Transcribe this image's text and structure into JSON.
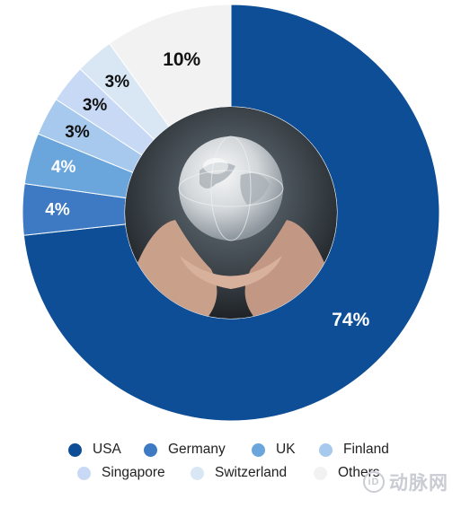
{
  "chart_data": {
    "type": "pie",
    "donut": true,
    "title": "",
    "start_angle_deg": 0,
    "direction": "clockwise",
    "slices": [
      {
        "label": "USA",
        "value": 74,
        "display": "74%",
        "color": "#0e4e96",
        "label_color": "#ffffff"
      },
      {
        "label": "Germany",
        "value": 4,
        "display": "4%",
        "color": "#3d7ac3",
        "label_color": "#ffffff"
      },
      {
        "label": "UK",
        "value": 4,
        "display": "4%",
        "color": "#6aa6dc",
        "label_color": "#ffffff"
      },
      {
        "label": "Finland",
        "value": 3,
        "display": "3%",
        "color": "#a6c9ed",
        "label_color": "#111111"
      },
      {
        "label": "Singapore",
        "value": 3,
        "display": "3%",
        "color": "#c8d9f6",
        "label_color": "#111111"
      },
      {
        "label": "Switzerland",
        "value": 3,
        "display": "3%",
        "color": "#d9e7f5",
        "label_color": "#111111"
      },
      {
        "label": "Others",
        "value": 10,
        "display": "10%",
        "color": "#f2f2f2",
        "label_color": "#111111"
      }
    ],
    "legend_position": "bottom",
    "center_image": "hands holding a glass globe"
  },
  "watermark": {
    "badge": "iD",
    "text": "动脉网"
  }
}
